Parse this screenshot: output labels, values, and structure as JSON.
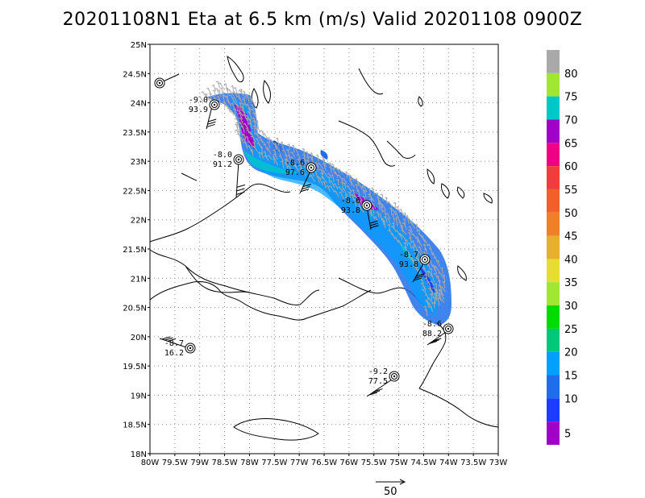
{
  "title": "20201108N1 Eta at 6.5 km (m/s) Valid 20201108  0900Z",
  "lat_labels": [
    "25N",
    "24.5N",
    "24N",
    "23.5N",
    "23N",
    "22.5N",
    "22N",
    "21.5N",
    "21N",
    "20.5N",
    "20N",
    "19.5N",
    "19N",
    "18.5N",
    "18N"
  ],
  "lon_labels": [
    "80W",
    "79.5W",
    "79W",
    "78.5W",
    "78W",
    "77.5W",
    "77W",
    "76.5W",
    "76W",
    "75.5W",
    "75W",
    "74.5W",
    "74W",
    "73.5W",
    "73W"
  ],
  "colorbar_labels": [
    "80",
    "75",
    "70",
    "65",
    "60",
    "55",
    "50",
    "45",
    "40",
    "35",
    "30",
    "25",
    "20",
    "15",
    "10",
    "5"
  ],
  "colorbar_colors": [
    "#a0e632",
    "#00c8c8",
    "#a000c8",
    "#f00082",
    "#f03c3c",
    "#f06028",
    "#f08028",
    "#e6af2d",
    "#e6dc32",
    "#a0e632",
    "#00dc00",
    "#00c878",
    "#00a0ff",
    "#1e6eeb",
    "#1e3cff",
    "#a000c8"
  ],
  "colorbar_top_color": "#a9a9a9",
  "vector_ref_label": "50",
  "stations": [
    {
      "top": "-9.0",
      "bottom": "93.9"
    },
    {
      "top": "-8.0",
      "bottom": "91.2"
    },
    {
      "top": "-8.6",
      "bottom": "97.6"
    },
    {
      "top": "-8.6",
      "bottom": "93.8"
    },
    {
      "top": "-8.7",
      "bottom": "93.8"
    },
    {
      "top": "-8.6",
      "bottom": "88.2"
    },
    {
      "top": "-8.7",
      "bottom": "16.2"
    },
    {
      "top": "-9.2",
      "bottom": "77.5"
    }
  ]
}
